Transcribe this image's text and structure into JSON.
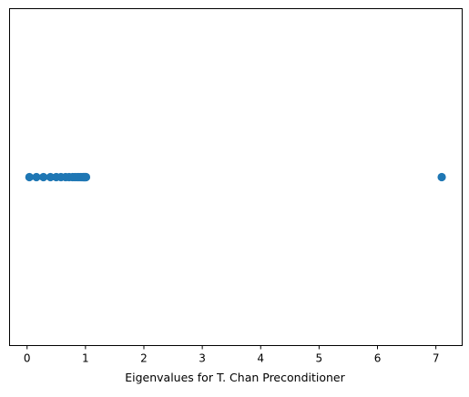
{
  "chart_data": {
    "type": "scatter",
    "title": "",
    "xlabel": "Eigenvalues for T. Chan Preconditioner",
    "ylabel": "",
    "xlim": [
      -0.3,
      7.45
    ],
    "ylim": [
      -0.055,
      0.055
    ],
    "x_ticks": [
      0,
      1,
      2,
      3,
      4,
      5,
      6,
      7
    ],
    "x_tick_labels": [
      "0",
      "1",
      "2",
      "3",
      "4",
      "5",
      "6",
      "7"
    ],
    "y_ticks": [],
    "grid": false,
    "legend": "none",
    "series": [
      {
        "marker": "circle",
        "color": "#1f77b4",
        "x": [
          0.04,
          0.16,
          0.28,
          0.4,
          0.5,
          0.58,
          0.66,
          0.72,
          0.78,
          0.82,
          0.86,
          0.89,
          0.92,
          0.94,
          0.96,
          0.97,
          0.98,
          0.99,
          1.0,
          1.01,
          7.1
        ],
        "y": [
          0,
          0,
          0,
          0,
          0,
          0,
          0,
          0,
          0,
          0,
          0,
          0,
          0,
          0,
          0,
          0,
          0,
          0,
          0,
          0,
          0
        ]
      }
    ]
  }
}
